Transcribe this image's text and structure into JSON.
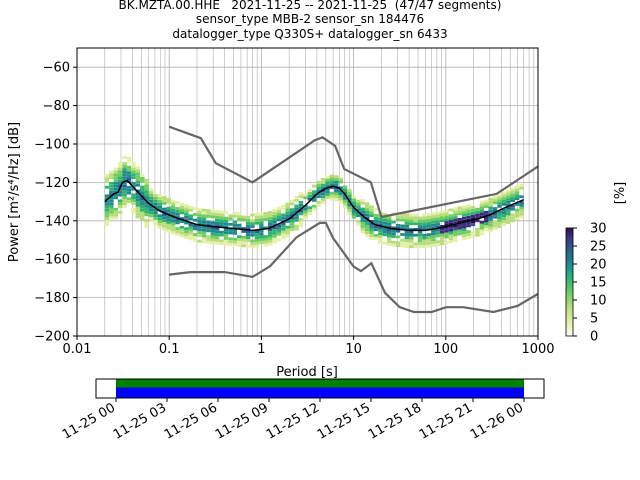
{
  "header": {
    "title_line1": "BK.MZTA.00.HHE   2021-11-25 -- 2021-11-25  (47/47 segments)",
    "title_line2": "sensor_type MBB-2 sensor_sn 184476",
    "title_line3": "datalogger_type Q330S+ datalogger_sn 6433"
  },
  "chart_data": {
    "type": "heatmap",
    "title": "BK.MZTA.00.HHE   2021-11-25 -- 2021-11-25  (47/47 segments)",
    "xlabel": "Period [s]",
    "ylabel": "Power [m²/s⁴/Hz] [dB]",
    "x_scale": "log",
    "xlim": [
      0.01,
      1000
    ],
    "ylim": [
      -200,
      -50
    ],
    "grid": true,
    "x_ticks": [
      {
        "value": 0.01,
        "label": "0.01"
      },
      {
        "value": 0.1,
        "label": "0.1"
      },
      {
        "value": 1,
        "label": "1"
      },
      {
        "value": 10,
        "label": "10"
      },
      {
        "value": 100,
        "label": "100"
      },
      {
        "value": 1000,
        "label": "1000"
      }
    ],
    "y_ticks": [
      {
        "value": -200,
        "label": "−200"
      },
      {
        "value": -180,
        "label": "−180"
      },
      {
        "value": -160,
        "label": "−160"
      },
      {
        "value": -140,
        "label": "−140"
      },
      {
        "value": -120,
        "label": "−120"
      },
      {
        "value": -100,
        "label": "−100"
      },
      {
        "value": -80,
        "label": "−80"
      },
      {
        "value": -60,
        "label": "−60"
      }
    ],
    "mode_curve": {
      "name": "mode",
      "color": "#000000",
      "points": [
        [
          0.02,
          -130
        ],
        [
          0.025,
          -126
        ],
        [
          0.028,
          -125
        ],
        [
          0.031,
          -120
        ],
        [
          0.035,
          -119
        ],
        [
          0.04,
          -122
        ],
        [
          0.05,
          -127
        ],
        [
          0.06,
          -131
        ],
        [
          0.08,
          -135
        ],
        [
          0.1,
          -137
        ],
        [
          0.13,
          -139
        ],
        [
          0.2,
          -142
        ],
        [
          0.3,
          -143
        ],
        [
          0.5,
          -144
        ],
        [
          0.8,
          -145
        ],
        [
          1.2,
          -144
        ],
        [
          2,
          -139
        ],
        [
          3,
          -132
        ],
        [
          4,
          -126
        ],
        [
          5,
          -123
        ],
        [
          6,
          -122
        ],
        [
          7,
          -123
        ],
        [
          8,
          -126
        ],
        [
          10,
          -133
        ],
        [
          13,
          -138
        ],
        [
          17,
          -142
        ],
        [
          25,
          -144
        ],
        [
          40,
          -145
        ],
        [
          60,
          -145
        ],
        [
          80,
          -144
        ],
        [
          100,
          -143
        ],
        [
          150,
          -141
        ],
        [
          220,
          -139
        ],
        [
          300,
          -137
        ],
        [
          400,
          -134
        ],
        [
          500,
          -132
        ],
        [
          700,
          -129
        ]
      ]
    },
    "noise_models": {
      "color": "#666666",
      "high_model": [
        [
          0.1,
          -91
        ],
        [
          0.22,
          -97
        ],
        [
          0.32,
          -110
        ],
        [
          0.8,
          -120
        ],
        [
          3.8,
          -98
        ],
        [
          4.6,
          -96.5
        ],
        [
          6.3,
          -101
        ],
        [
          7.9,
          -113
        ],
        [
          15.4,
          -120
        ],
        [
          20,
          -138
        ],
        [
          354.8,
          -126
        ],
        [
          10000,
          -80
        ]
      ],
      "low_model": [
        [
          0.1,
          -168
        ],
        [
          0.17,
          -166.7
        ],
        [
          0.4,
          -166.7
        ],
        [
          0.8,
          -169.2
        ],
        [
          1.24,
          -163.7
        ],
        [
          2.4,
          -148.6
        ],
        [
          4.3,
          -141.1
        ],
        [
          5.0,
          -141.1
        ],
        [
          6.0,
          -149
        ],
        [
          10.0,
          -163.8
        ],
        [
          12.0,
          -166.2
        ],
        [
          15.6,
          -162.1
        ],
        [
          21.9,
          -177.5
        ],
        [
          31.6,
          -185
        ],
        [
          45,
          -187.5
        ],
        [
          70,
          -187.5
        ],
        [
          101,
          -185
        ],
        [
          154,
          -185
        ],
        [
          328,
          -187.5
        ],
        [
          600,
          -184.4
        ],
        [
          1000,
          -178
        ]
      ]
    },
    "colorbar": {
      "label": "[%]",
      "min": 0,
      "max": 30,
      "ticks": [
        0,
        5,
        10,
        15,
        20,
        25,
        30
      ],
      "colors": [
        "#ffffff",
        "#e4efa7",
        "#b7dc7a",
        "#6dcd60",
        "#2eb36e",
        "#1e8a8c",
        "#2b5f92",
        "#3a2e7c",
        "#2a0f4e"
      ]
    },
    "timeline": {
      "ticks": [
        "11-25 00",
        "11-25 03",
        "11-25 06",
        "11-25 09",
        "11-25 12",
        "11-25 15",
        "11-25 18",
        "11-25 21",
        "11-26 00"
      ],
      "coverage_start_hour": 0,
      "coverage_end_hour": 24,
      "top_color": "#008000",
      "bottom_color": "#0000ff"
    }
  }
}
